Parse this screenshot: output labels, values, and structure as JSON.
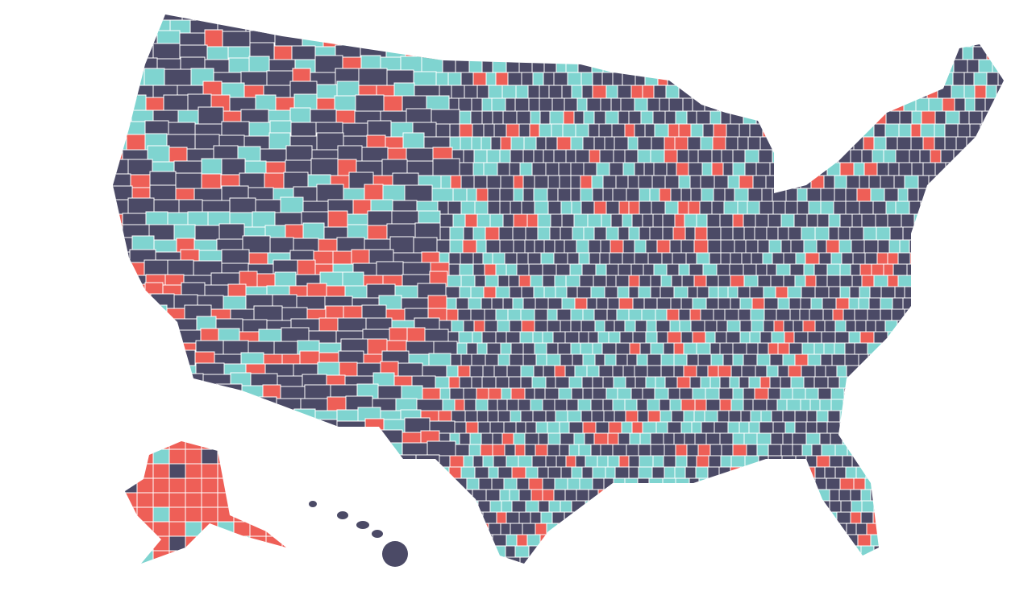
{
  "map": {
    "colors": [
      "#4b4a66",
      "#7fd4d0",
      "#ee5f57"
    ]
  }
}
